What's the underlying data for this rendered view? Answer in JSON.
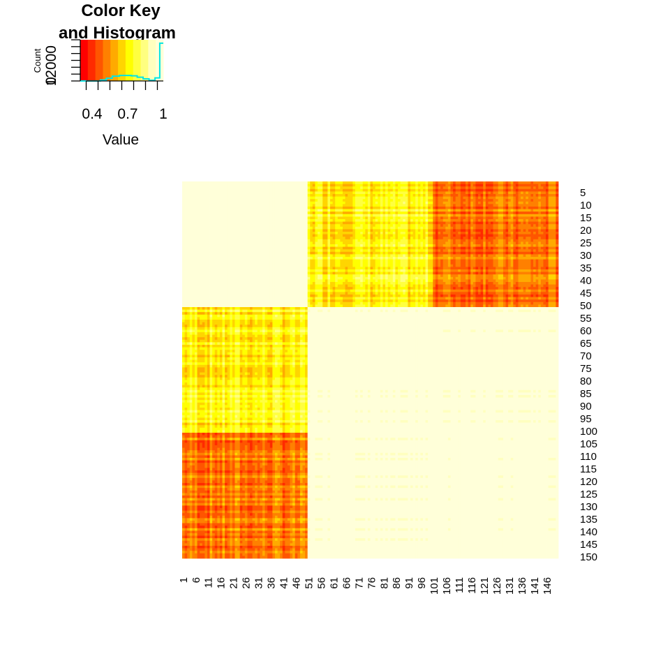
{
  "colors": {
    "histogram_line": "#00e5e5",
    "axis": "#000000",
    "background": "#ffffff",
    "palette": [
      "#ff0000",
      "#ff2a00",
      "#ff5500",
      "#ff8000",
      "#ffaa00",
      "#ffd500",
      "#ffff00",
      "#ffff40",
      "#ffff80",
      "#ffffbf",
      "#ffffd9"
    ]
  },
  "chart_data": [
    {
      "type": "heatmap",
      "title": "",
      "xlabel": "",
      "ylabel": "",
      "n": 150,
      "groups": [
        {
          "start": 1,
          "end": 50
        },
        {
          "start": 51,
          "end": 100
        },
        {
          "start": 101,
          "end": 150
        }
      ],
      "block_mean_values": [
        [
          1.0,
          0.72,
          0.5
        ],
        [
          0.72,
          1.0,
          0.95
        ],
        [
          0.5,
          0.95,
          1.0
        ]
      ],
      "x_tick_labels": [
        "1",
        "6",
        "11",
        "16",
        "21",
        "26",
        "31",
        "36",
        "41",
        "46",
        "51",
        "56",
        "61",
        "66",
        "71",
        "76",
        "81",
        "86",
        "91",
        "96",
        "101",
        "106",
        "111",
        "116",
        "121",
        "126",
        "131",
        "136",
        "141",
        "146"
      ],
      "y_tick_labels": [
        "5",
        "10",
        "15",
        "20",
        "25",
        "30",
        "35",
        "40",
        "45",
        "50",
        "55",
        "60",
        "65",
        "70",
        "75",
        "80",
        "85",
        "90",
        "95",
        "100",
        "105",
        "110",
        "115",
        "120",
        "125",
        "130",
        "135",
        "140",
        "145",
        "150"
      ],
      "value_range": [
        0.3,
        1.0
      ]
    },
    {
      "type": "color_key_histogram",
      "title_line1": "Color Key",
      "title_line2": "and Histogram",
      "xlabel": "Value",
      "ylabel": "Count",
      "x_tick_labels": [
        "0.4",
        "0.7",
        "1"
      ],
      "x_tick_values": [
        0.4,
        0.7,
        1.0
      ],
      "y_tick_labels": [
        "0",
        "12000"
      ],
      "y_tick_values": [
        0,
        12000
      ],
      "xlim": [
        0.3,
        1.0
      ],
      "ylim": [
        0,
        12000
      ],
      "histogram": {
        "x": [
          0.3,
          0.42,
          0.47,
          0.52,
          0.57,
          0.63,
          0.68,
          0.73,
          0.78,
          0.83,
          0.88,
          0.93,
          0.97,
          1.0
        ],
        "counts": [
          0,
          0,
          300,
          800,
          1400,
          1600,
          1600,
          1500,
          1100,
          600,
          200,
          900,
          11000,
          11000
        ]
      }
    }
  ]
}
